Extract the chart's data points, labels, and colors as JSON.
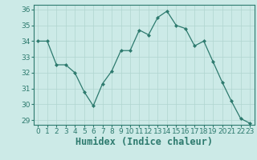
{
  "x": [
    0,
    1,
    2,
    3,
    4,
    5,
    6,
    7,
    8,
    9,
    10,
    11,
    12,
    13,
    14,
    15,
    16,
    17,
    18,
    19,
    20,
    21,
    22,
    23
  ],
  "y": [
    34.0,
    34.0,
    32.5,
    32.5,
    32.0,
    30.8,
    29.9,
    31.3,
    32.1,
    33.4,
    33.4,
    34.7,
    34.4,
    35.5,
    35.9,
    35.0,
    34.8,
    33.7,
    34.0,
    32.7,
    31.4,
    30.2,
    29.1,
    28.8
  ],
  "line_color": "#2d7a6e",
  "marker": "D",
  "marker_size": 2.0,
  "bg_color": "#cceae7",
  "grid_color": "#b0d5d0",
  "xlabel": "Humidex (Indice chaleur)",
  "ylim_min": 28.7,
  "ylim_max": 36.3,
  "xlim_min": -0.5,
  "xlim_max": 23.5,
  "yticks": [
    29,
    30,
    31,
    32,
    33,
    34,
    35,
    36
  ],
  "xticks": [
    0,
    1,
    2,
    3,
    4,
    5,
    6,
    7,
    8,
    9,
    10,
    11,
    12,
    13,
    14,
    15,
    16,
    17,
    18,
    19,
    20,
    21,
    22,
    23
  ],
  "tick_label_size": 6.5,
  "xlabel_size": 8.5,
  "spine_color": "#2d7a6e",
  "tick_color": "#2d7a6e"
}
